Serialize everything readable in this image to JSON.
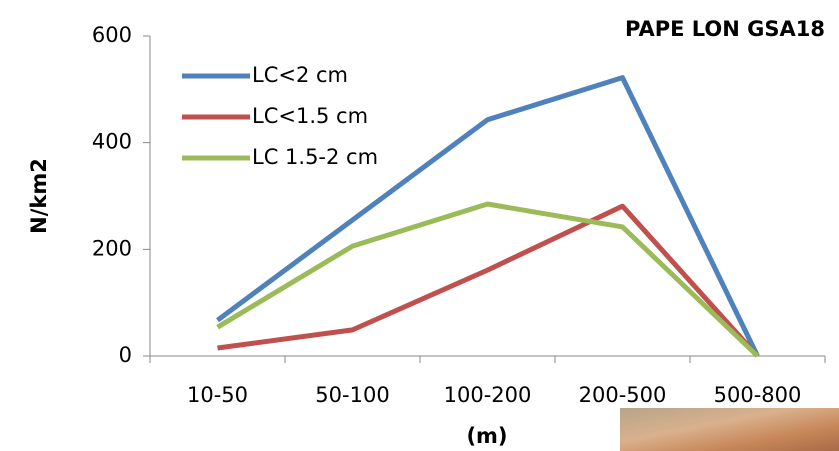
{
  "chart_data": {
    "type": "line",
    "title": "PAPE LON GSA18",
    "x_label": "(m)",
    "y_label": "N/km2",
    "categories": [
      "10-50",
      "50-100",
      "100-200",
      "200-500",
      "500-800"
    ],
    "series": [
      {
        "name": "LC<2 cm",
        "color": "#4f81bd",
        "values": [
          67,
          255,
          443,
          522,
          0
        ]
      },
      {
        "name": "LC<1.5 cm",
        "color": "#c0504d",
        "values": [
          15,
          49,
          161,
          281,
          0
        ]
      },
      {
        "name": "LC 1.5-2 cm",
        "color": "#9bbb59",
        "values": [
          54,
          206,
          285,
          242,
          0
        ]
      }
    ],
    "ylim": [
      0,
      600
    ],
    "yticks": [
      0,
      200,
      400,
      600
    ],
    "grid": false,
    "legend": "upper left"
  }
}
